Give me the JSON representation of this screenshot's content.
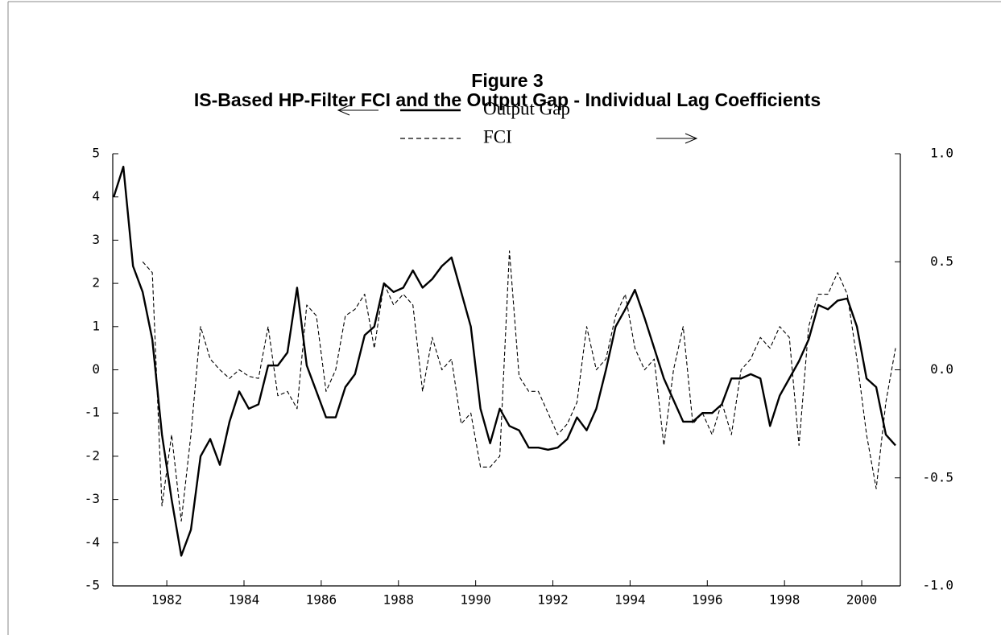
{
  "chart_data": {
    "type": "line",
    "title": "Figure 3",
    "subtitle": "IS-Based HP-Filter FCI and the Output Gap - Individual Lag Coefficients",
    "x": [
      1980.625,
      1980.875,
      1981.125,
      1981.375,
      1981.625,
      1981.875,
      1982.125,
      1982.375,
      1982.625,
      1982.875,
      1983.125,
      1983.375,
      1983.625,
      1983.875,
      1984.125,
      1984.375,
      1984.625,
      1984.875,
      1985.125,
      1985.375,
      1985.625,
      1985.875,
      1986.125,
      1986.375,
      1986.625,
      1986.875,
      1987.125,
      1987.375,
      1987.625,
      1987.875,
      1988.125,
      1988.375,
      1988.625,
      1988.875,
      1989.125,
      1989.375,
      1989.625,
      1989.875,
      1990.125,
      1990.375,
      1990.625,
      1990.875,
      1991.125,
      1991.375,
      1991.625,
      1991.875,
      1992.125,
      1992.375,
      1992.625,
      1992.875,
      1993.125,
      1993.375,
      1993.625,
      1993.875,
      1994.125,
      1994.375,
      1994.625,
      1994.875,
      1995.125,
      1995.375,
      1995.625,
      1995.875,
      1996.125,
      1996.375,
      1996.625,
      1996.875,
      1997.125,
      1997.375,
      1997.625,
      1997.875,
      1998.125,
      1998.375,
      1998.625,
      1998.875,
      1999.125,
      1999.375,
      1999.625,
      1999.875,
      2000.125,
      2000.375,
      2000.625,
      2000.875
    ],
    "series": [
      {
        "name": "Output Gap",
        "color": "#000000",
        "line_style": "solid",
        "axis": "y",
        "values": [
          4.0,
          4.7,
          2.4,
          1.8,
          0.7,
          -1.5,
          -3.0,
          -4.3,
          -3.7,
          -2.0,
          -1.6,
          -2.2,
          -1.2,
          -0.5,
          -0.9,
          -0.8,
          0.1,
          0.1,
          0.4,
          1.9,
          0.1,
          -0.5,
          -1.1,
          -1.1,
          -0.4,
          -0.1,
          0.8,
          1.0,
          2.0,
          1.8,
          1.9,
          2.3,
          1.9,
          2.1,
          2.4,
          2.6,
          1.8,
          1.0,
          -0.9,
          -1.7,
          -0.9,
          -1.3,
          -1.4,
          -1.8,
          -1.8,
          -1.85,
          -1.8,
          -1.6,
          -1.1,
          -1.4,
          -0.9,
          0.0,
          1.0,
          1.4,
          1.85,
          1.2,
          0.5,
          -0.2,
          -0.7,
          -1.2,
          -1.2,
          -1.0,
          -1.0,
          -0.8,
          -0.2,
          -0.2,
          -0.1,
          -0.2,
          -1.3,
          -0.6,
          -0.2,
          0.2,
          0.7,
          1.5,
          1.4,
          1.6,
          1.65,
          1.0,
          -0.2,
          -0.4,
          -1.5,
          -1.75
        ]
      },
      {
        "name": "FCI",
        "color": "#000000",
        "line_style": "dashed",
        "axis": "y2",
        "values": [
          null,
          null,
          null,
          0.5,
          0.45,
          -0.63,
          -0.3,
          -0.7,
          -0.3,
          0.2,
          0.05,
          0.0,
          -0.04,
          0.0,
          -0.03,
          -0.04,
          0.2,
          -0.12,
          -0.1,
          -0.18,
          0.3,
          0.25,
          -0.1,
          0.0,
          0.25,
          0.28,
          0.35,
          0.1,
          0.4,
          0.3,
          0.35,
          0.3,
          -0.1,
          0.15,
          0.0,
          0.05,
          -0.25,
          -0.2,
          -0.45,
          -0.45,
          -0.4,
          0.55,
          -0.03,
          -0.1,
          -0.1,
          -0.2,
          -0.3,
          -0.25,
          -0.15,
          0.2,
          0.0,
          0.05,
          0.25,
          0.35,
          0.1,
          0.0,
          0.05,
          -0.35,
          0.0,
          0.2,
          -0.25,
          -0.2,
          -0.3,
          -0.15,
          -0.3,
          0.0,
          0.05,
          0.15,
          0.1,
          0.2,
          0.15,
          -0.35,
          0.2,
          0.35,
          0.35,
          0.45,
          0.35,
          0.05,
          -0.3,
          -0.55,
          -0.15,
          0.1
        ]
      }
    ],
    "xlim": [
      1980.6,
      2001.0
    ],
    "xticks": [
      1982,
      1984,
      1986,
      1988,
      1990,
      1992,
      1994,
      1996,
      1998,
      2000
    ],
    "ylim": [
      -5,
      5
    ],
    "yticks": [
      -5,
      -4,
      -3,
      -2,
      -1,
      0,
      1,
      2,
      3,
      4,
      5
    ],
    "y2lim": [
      -1,
      1
    ],
    "y2ticks": [
      {
        "value": -1,
        "label": "-1.0"
      },
      {
        "value": -0.5,
        "label": "-0.5"
      },
      {
        "value": 0,
        "label": "0.0"
      },
      {
        "value": 0.5,
        "label": "0.5"
      },
      {
        "value": 1,
        "label": "1.0"
      }
    ]
  }
}
